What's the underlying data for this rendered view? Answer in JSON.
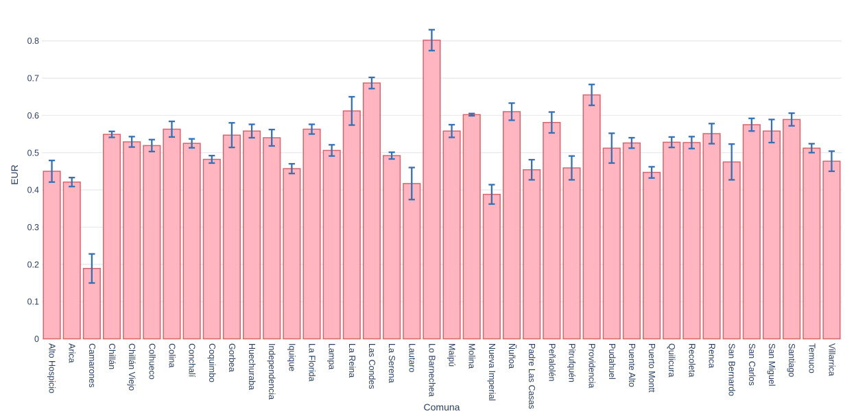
{
  "chart_data": {
    "type": "bar",
    "title": "",
    "xlabel": "Comuna",
    "ylabel": "EUR",
    "legend": null,
    "grid": "horizontal",
    "ylim": [
      0,
      0.85
    ],
    "yticks": [
      0,
      0.1,
      0.2,
      0.3,
      0.4,
      0.5,
      0.6,
      0.7,
      0.8
    ],
    "categories": [
      "Alto Hospicio",
      "Arica",
      "Camarones",
      "Chillán",
      "Chillán Viejo",
      "Colhueco",
      "Colina",
      "Conchalí",
      "Coquimbo",
      "Gorbea",
      "Huechuraba",
      "Independencia",
      "Iquique",
      "La Florida",
      "Lampa",
      "La Reina",
      "Las Condes",
      "La Serena",
      "Lautaro",
      "Lo Barnechea",
      "Maipú",
      "Molina",
      "Nueva Imperial",
      "Ñuñoa",
      "Padre Las Casas",
      "Peñalolén",
      "Pitrufquén",
      "Providencia",
      "Pudahuel",
      "Puente Alto",
      "Puerto Montt",
      "Quilicura",
      "Recoleta",
      "Renca",
      "San Bernardo",
      "San Carlos",
      "San Miguel",
      "Santiago",
      "Temuco",
      "Villarrica"
    ],
    "series": [
      {
        "name": "EUR",
        "values": [
          0.45,
          0.421,
          0.189,
          0.549,
          0.529,
          0.519,
          0.563,
          0.525,
          0.482,
          0.547,
          0.558,
          0.54,
          0.457,
          0.563,
          0.506,
          0.612,
          0.687,
          0.492,
          0.417,
          0.802,
          0.558,
          0.602,
          0.388,
          0.61,
          0.454,
          0.581,
          0.459,
          0.655,
          0.512,
          0.526,
          0.447,
          0.528,
          0.527,
          0.551,
          0.475,
          0.575,
          0.558,
          0.589,
          0.512,
          0.477
        ],
        "errors": [
          0.029,
          0.012,
          0.039,
          0.008,
          0.014,
          0.016,
          0.021,
          0.012,
          0.01,
          0.033,
          0.018,
          0.022,
          0.013,
          0.013,
          0.015,
          0.038,
          0.015,
          0.009,
          0.043,
          0.028,
          0.017,
          0.003,
          0.026,
          0.023,
          0.027,
          0.028,
          0.032,
          0.028,
          0.04,
          0.014,
          0.015,
          0.014,
          0.016,
          0.027,
          0.048,
          0.017,
          0.031,
          0.017,
          0.012,
          0.027
        ]
      }
    ],
    "colors": {
      "bar_fill": "#ffb6c1",
      "bar_border": "#d5656d",
      "error_bar": "#3470b3",
      "grid_line": "#e9e9ee",
      "text": "#2a3f5f",
      "background": "#ffffff"
    }
  }
}
